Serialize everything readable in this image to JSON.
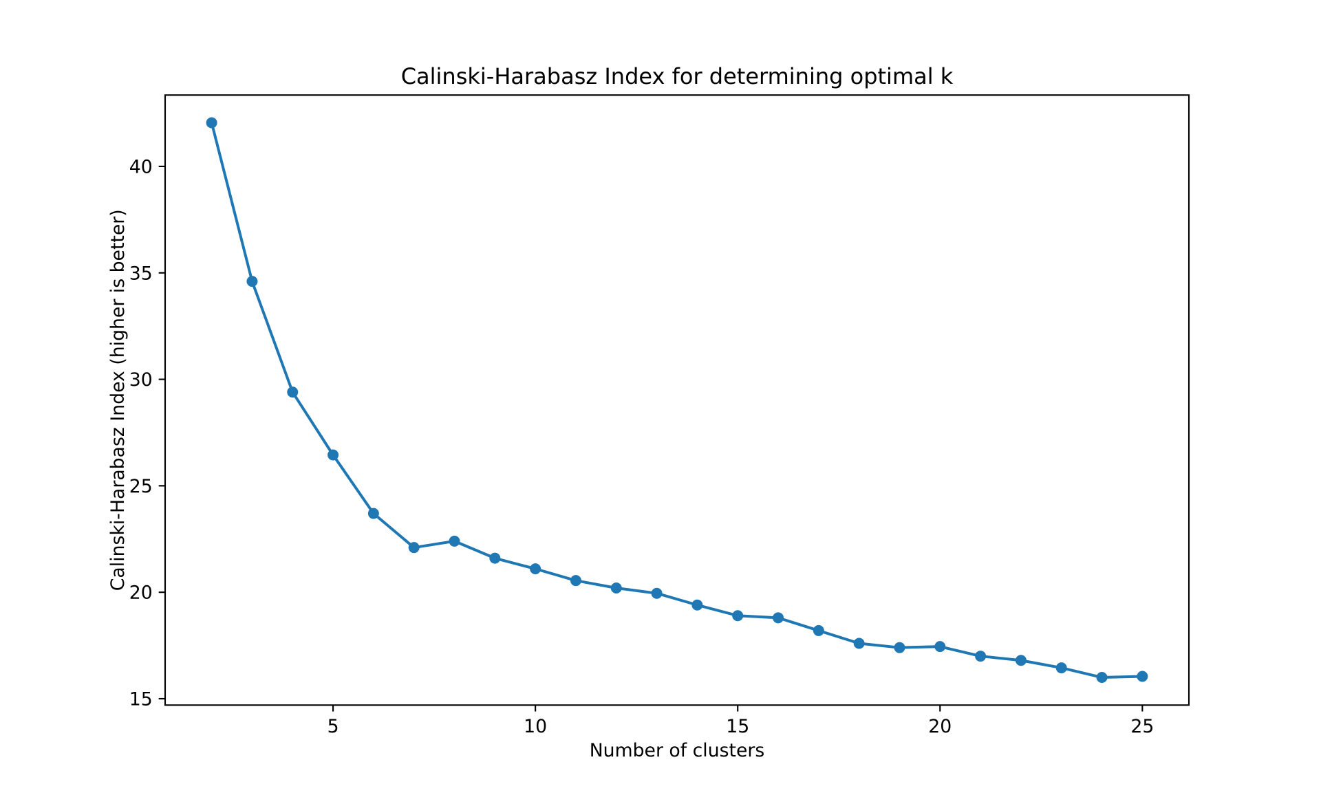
{
  "chart_data": {
    "type": "line",
    "title": "Calinski-Harabasz Index for determining optimal k",
    "xlabel": "Number of clusters",
    "ylabel": "Calinski-Harabasz Index (higher is better)",
    "x": [
      2,
      3,
      4,
      5,
      6,
      7,
      8,
      9,
      10,
      11,
      12,
      13,
      14,
      15,
      16,
      17,
      18,
      19,
      20,
      21,
      22,
      23,
      24,
      25
    ],
    "y": [
      42.05,
      34.6,
      29.4,
      26.45,
      23.7,
      22.1,
      22.4,
      21.6,
      21.1,
      20.55,
      20.2,
      19.95,
      19.4,
      18.9,
      18.8,
      18.2,
      17.6,
      17.4,
      17.45,
      17.0,
      16.8,
      16.45,
      16.0,
      16.05
    ],
    "xticks": [
      5,
      10,
      15,
      20,
      25
    ],
    "yticks": [
      15,
      20,
      25,
      30,
      35,
      40
    ],
    "xlim": [
      0.85,
      26.15
    ],
    "ylim": [
      14.7,
      43.35
    ],
    "line_color": "#1f77b4",
    "marker": "circle",
    "grid": false,
    "legend": null,
    "background_color": "#ffffff",
    "spine_color": "#000000"
  }
}
